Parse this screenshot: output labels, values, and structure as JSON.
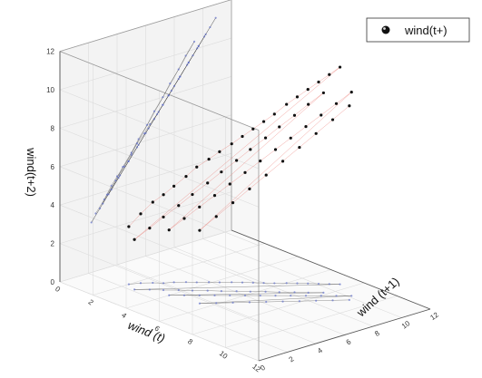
{
  "chart_data": {
    "type": "scatter",
    "subtype": "3d-scatter-with-drop-lines-and-wall-projections",
    "title": "",
    "axes": {
      "x": {
        "label": "wind (t)",
        "range": [
          0,
          12
        ],
        "ticks": [
          "0",
          "2",
          "4",
          "6",
          "8",
          "10",
          "12"
        ]
      },
      "y": {
        "label": "wind (t+1)",
        "range": [
          0,
          12
        ],
        "ticks": [
          "0",
          "2",
          "4",
          "6",
          "8",
          "10",
          "12"
        ]
      },
      "z": {
        "label": "wind(t+2)",
        "range": [
          0,
          12
        ],
        "ticks": [
          "0",
          "2",
          "4",
          "6",
          "8",
          "10",
          "12"
        ]
      }
    },
    "grid": true,
    "legend": {
      "position": "top-right",
      "entries": [
        "wind(t+)"
      ]
    },
    "series": [
      {
        "name": "wind(t+)",
        "marker": "sphere",
        "color": "#111111",
        "drop_line_color": "#e8584f",
        "projection_line_color": "#333333",
        "projection_marker_color": "#5566cc",
        "points": [
          [
            2.0,
            2.5,
            3.0
          ],
          [
            2.2,
            3.1,
            3.6
          ],
          [
            2.5,
            3.6,
            4.2
          ],
          [
            2.8,
            4.0,
            4.6
          ],
          [
            3.0,
            4.5,
            5.0
          ],
          [
            3.3,
            5.0,
            5.5
          ],
          [
            3.6,
            5.4,
            6.0
          ],
          [
            3.9,
            5.9,
            6.4
          ],
          [
            4.2,
            6.3,
            6.8
          ],
          [
            4.5,
            6.8,
            7.2
          ],
          [
            4.8,
            7.2,
            7.6
          ],
          [
            5.1,
            7.6,
            8.0
          ],
          [
            5.4,
            8.0,
            8.4
          ],
          [
            5.7,
            8.4,
            8.8
          ],
          [
            6.0,
            8.9,
            9.3
          ],
          [
            6.3,
            9.3,
            9.7
          ],
          [
            6.6,
            9.7,
            10.1
          ],
          [
            6.9,
            10.1,
            10.5
          ],
          [
            7.2,
            10.5,
            10.9
          ],
          [
            7.5,
            10.9,
            11.3
          ],
          [
            2.6,
            2.2,
            2.6
          ],
          [
            3.0,
            2.8,
            3.2
          ],
          [
            3.4,
            3.3,
            3.8
          ],
          [
            3.8,
            3.9,
            4.4
          ],
          [
            4.2,
            4.4,
            5.0
          ],
          [
            4.6,
            5.0,
            5.6
          ],
          [
            5.0,
            5.5,
            6.2
          ],
          [
            5.4,
            6.1,
            6.8
          ],
          [
            5.8,
            6.6,
            7.4
          ],
          [
            6.2,
            7.2,
            8.0
          ],
          [
            6.6,
            7.7,
            8.6
          ],
          [
            7.0,
            8.3,
            9.2
          ],
          [
            7.4,
            8.8,
            9.8
          ],
          [
            7.8,
            9.4,
            10.4
          ],
          [
            4.0,
            3.0,
            3.4
          ],
          [
            4.4,
            3.6,
            4.0
          ],
          [
            4.8,
            4.2,
            4.6
          ],
          [
            5.2,
            4.8,
            5.2
          ],
          [
            5.6,
            5.4,
            5.8
          ],
          [
            6.0,
            6.0,
            6.4
          ],
          [
            6.4,
            6.6,
            7.0
          ],
          [
            6.8,
            7.2,
            7.6
          ],
          [
            7.2,
            7.8,
            8.2
          ],
          [
            7.6,
            8.4,
            8.8
          ],
          [
            8.0,
            9.0,
            9.4
          ],
          [
            8.4,
            9.6,
            10.0
          ],
          [
            8.8,
            10.2,
            10.6
          ],
          [
            5.5,
            3.4,
            3.8
          ],
          [
            5.9,
            4.1,
            4.5
          ],
          [
            6.3,
            4.8,
            5.2
          ],
          [
            6.7,
            5.5,
            5.9
          ],
          [
            7.1,
            6.2,
            6.6
          ],
          [
            7.5,
            6.9,
            7.3
          ],
          [
            7.9,
            7.6,
            8.0
          ],
          [
            8.3,
            8.3,
            8.7
          ],
          [
            8.7,
            9.0,
            9.4
          ],
          [
            9.1,
            9.7,
            10.1
          ]
        ]
      }
    ]
  }
}
